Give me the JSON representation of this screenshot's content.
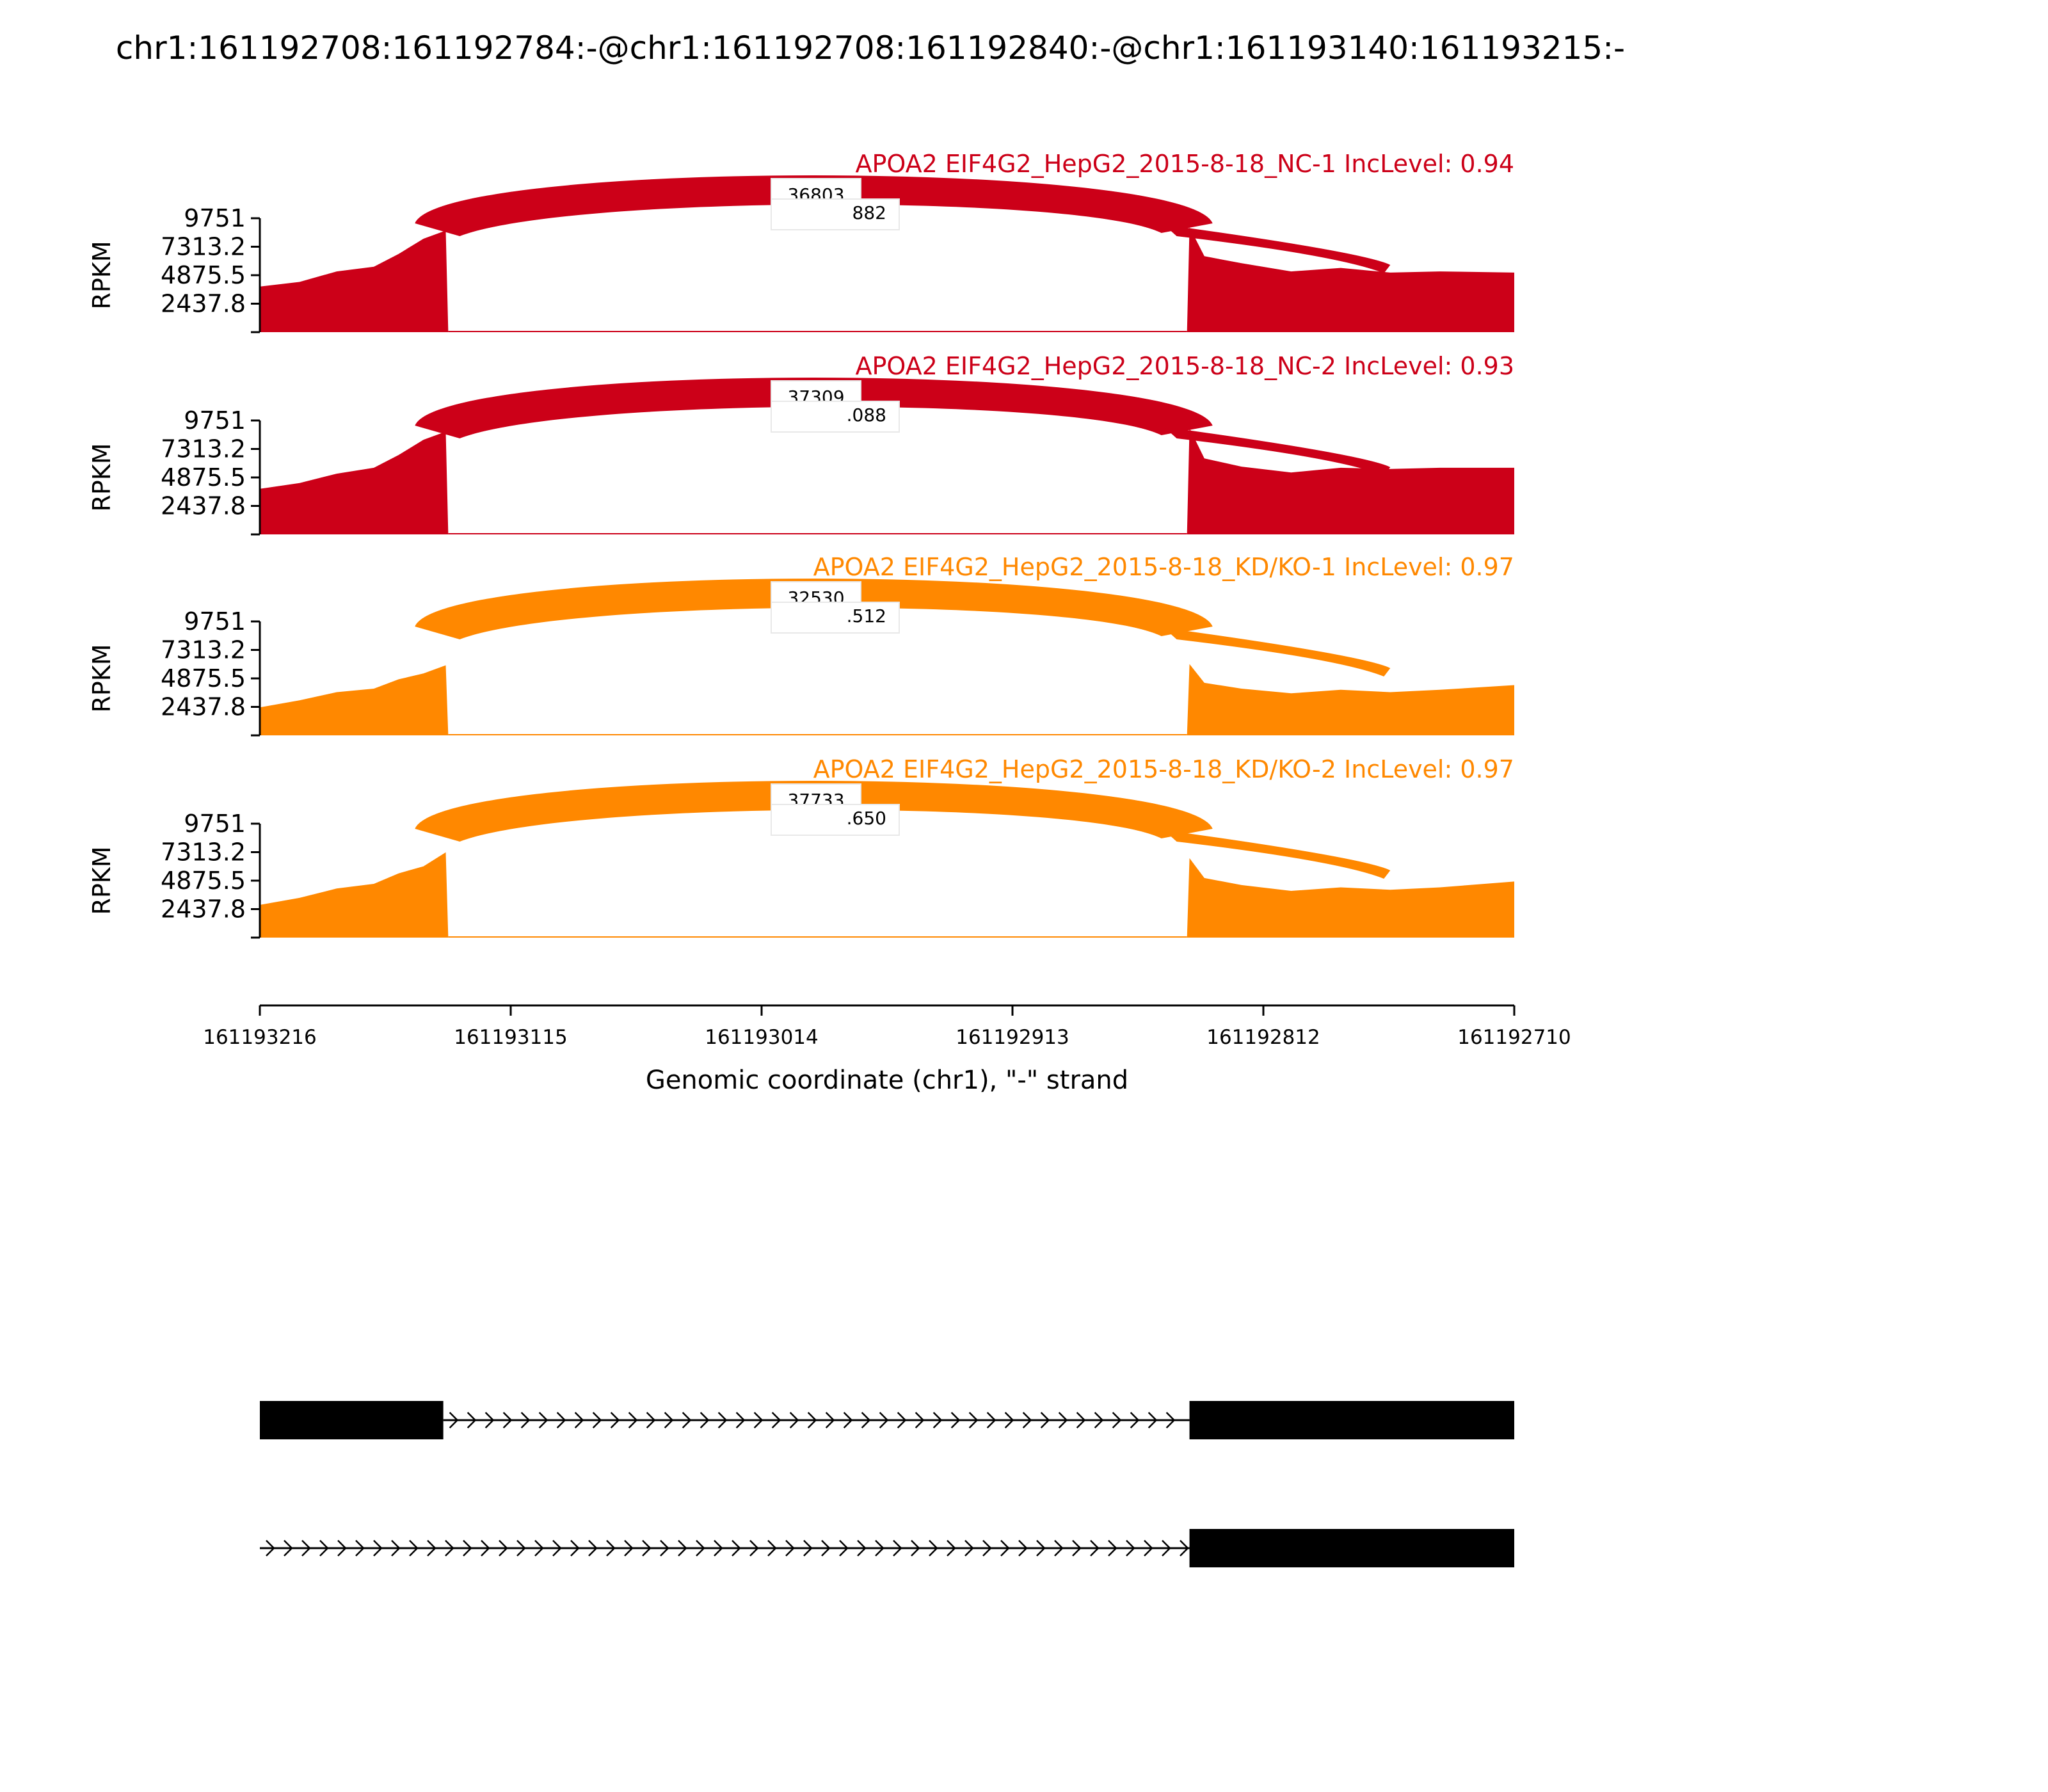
{
  "figure": {
    "title": "chr1:161192708:161192784:-@chr1:161192708:161192840:-@chr1:161193140:161193215:-"
  },
  "chart_data": {
    "type": "area",
    "subtype": "sashimi",
    "ylabel": "RPKM",
    "yticks": [
      "2437.8",
      "4875.5",
      "7313.2",
      "9751"
    ],
    "ylim": [
      0,
      9751
    ],
    "xlabel": "Genomic coordinate (chr1), \"-\" strand",
    "xticks": [
      "161193216",
      "161193115",
      "161193014",
      "161192913",
      "161192812",
      "161192710"
    ],
    "xlim": [
      161193216,
      161192710
    ],
    "grid": false,
    "tracks": [
      {
        "label": "APOA2 EIF4G2_HepG2_2015-8-18_NC-1 IncLevel: 0.94",
        "color": "#cc0018",
        "junction_labels": [
          "36803",
          "882"
        ],
        "coverage": [
          [
            161193216,
            3900
          ],
          [
            161193200,
            4300
          ],
          [
            161193185,
            5200
          ],
          [
            161193170,
            5600
          ],
          [
            161193160,
            6700
          ],
          [
            161193150,
            8000
          ],
          [
            161193141,
            8700
          ],
          [
            161193140,
            0
          ],
          [
            161192842,
            0
          ],
          [
            161192841,
            9000
          ],
          [
            161192835,
            6500
          ],
          [
            161192820,
            5900
          ],
          [
            161192800,
            5200
          ],
          [
            161192780,
            5500
          ],
          [
            161192760,
            5100
          ],
          [
            161192740,
            5200
          ],
          [
            161192710,
            5100
          ]
        ]
      },
      {
        "label": "APOA2 EIF4G2_HepG2_2015-8-18_NC-2 IncLevel: 0.93",
        "color": "#cc0018",
        "junction_labels": [
          "37309",
          ".088"
        ],
        "coverage": [
          [
            161193216,
            3900
          ],
          [
            161193200,
            4400
          ],
          [
            161193185,
            5200
          ],
          [
            161193170,
            5700
          ],
          [
            161193160,
            6800
          ],
          [
            161193150,
            8100
          ],
          [
            161193141,
            8800
          ],
          [
            161193140,
            0
          ],
          [
            161192842,
            0
          ],
          [
            161192841,
            9100
          ],
          [
            161192835,
            6500
          ],
          [
            161192820,
            5800
          ],
          [
            161192800,
            5300
          ],
          [
            161192780,
            5700
          ],
          [
            161192760,
            5600
          ],
          [
            161192740,
            5700
          ],
          [
            161192710,
            5700
          ]
        ]
      },
      {
        "label": "APOA2 EIF4G2_HepG2_2015-8-18_KD/KO-1 IncLevel: 0.97",
        "color": "#ff8800",
        "junction_labels": [
          "32530",
          ".512"
        ],
        "coverage": [
          [
            161193216,
            2400
          ],
          [
            161193200,
            3000
          ],
          [
            161193185,
            3700
          ],
          [
            161193170,
            4000
          ],
          [
            161193160,
            4800
          ],
          [
            161193150,
            5300
          ],
          [
            161193141,
            6000
          ],
          [
            161193140,
            0
          ],
          [
            161192842,
            0
          ],
          [
            161192841,
            6100
          ],
          [
            161192835,
            4500
          ],
          [
            161192820,
            4000
          ],
          [
            161192800,
            3600
          ],
          [
            161192780,
            3900
          ],
          [
            161192760,
            3700
          ],
          [
            161192740,
            3900
          ],
          [
            161192710,
            4300
          ]
        ]
      },
      {
        "label": "APOA2 EIF4G2_HepG2_2015-8-18_KD/KO-2 IncLevel: 0.97",
        "color": "#ff8800",
        "junction_labels": [
          "37733",
          ".650"
        ],
        "coverage": [
          [
            161193216,
            2800
          ],
          [
            161193200,
            3400
          ],
          [
            161193185,
            4200
          ],
          [
            161193170,
            4600
          ],
          [
            161193160,
            5500
          ],
          [
            161193150,
            6100
          ],
          [
            161193141,
            7300
          ],
          [
            161193140,
            0
          ],
          [
            161192842,
            0
          ],
          [
            161192841,
            6800
          ],
          [
            161192835,
            5100
          ],
          [
            161192820,
            4500
          ],
          [
            161192800,
            4000
          ],
          [
            161192780,
            4300
          ],
          [
            161192760,
            4100
          ],
          [
            161192740,
            4300
          ],
          [
            161192710,
            4800
          ]
        ]
      }
    ],
    "gene_models": [
      {
        "exons": [
          [
            161193216,
            161193142
          ],
          [
            161192841,
            161192710
          ]
        ],
        "intron_from": 161193142,
        "intron_to": 161192841
      },
      {
        "exons": [
          [
            161192841,
            161192710
          ]
        ],
        "intron_from": 161193216,
        "intron_to": 161192841
      }
    ]
  }
}
